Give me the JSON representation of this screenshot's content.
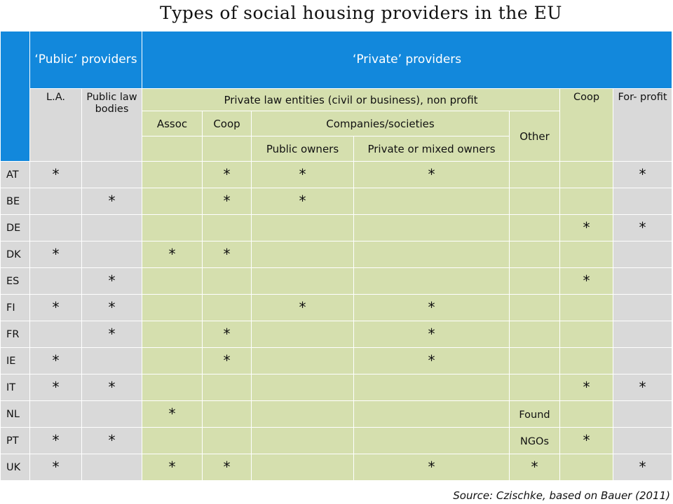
{
  "title": "Types of social housing providers in the EU",
  "source": "Source: Czischke, based on Bauer (2011)",
  "header": {
    "public_providers": "‘Public’ providers",
    "private_providers": "‘Private’ providers",
    "la": "L.A.",
    "public_law_bodies": "Public law bodies",
    "private_law_entities": "Private law entities (civil or business), non profit",
    "coop_top": "Coop",
    "for_profit": "For- profit",
    "assoc": "Assoc",
    "coop": "Coop",
    "companies_societies": "Companies/societies",
    "other": "Other",
    "public_owners": "Public owners",
    "private_mixed_owners": "Private or mixed owners"
  },
  "rows": [
    {
      "country": "AT",
      "cells": [
        "*",
        "",
        "",
        "*",
        "*",
        "*",
        "",
        "",
        "*"
      ]
    },
    {
      "country": "BE",
      "cells": [
        "",
        "*",
        "",
        "*",
        "*",
        "",
        "",
        "",
        ""
      ]
    },
    {
      "country": "DE",
      "cells": [
        "",
        "",
        "",
        "",
        "",
        "",
        "",
        "*",
        "*"
      ]
    },
    {
      "country": "DK",
      "cells": [
        "*",
        "",
        "*",
        "*",
        "",
        "",
        "",
        "",
        ""
      ]
    },
    {
      "country": "ES",
      "cells": [
        "",
        "*",
        "",
        "",
        "",
        "",
        "",
        "*",
        ""
      ]
    },
    {
      "country": "FI",
      "cells": [
        "*",
        "*",
        "",
        "",
        "*",
        "*",
        "",
        "",
        ""
      ]
    },
    {
      "country": "FR",
      "cells": [
        "",
        "*",
        "",
        "*",
        "",
        "*",
        "",
        "",
        ""
      ]
    },
    {
      "country": "IE",
      "cells": [
        "*",
        "",
        "",
        "*",
        "",
        "*",
        "",
        "",
        ""
      ]
    },
    {
      "country": "IT",
      "cells": [
        "*",
        "*",
        "",
        "",
        "",
        "",
        "",
        "*",
        "*"
      ]
    },
    {
      "country": "NL",
      "cells": [
        "",
        "",
        "*",
        "",
        "",
        "",
        "Found",
        "",
        ""
      ]
    },
    {
      "country": "PT",
      "cells": [
        "*",
        "*",
        "",
        "",
        "",
        "",
        "NGOs",
        "*",
        ""
      ]
    },
    {
      "country": "UK",
      "cells": [
        "*",
        "",
        "*",
        "*",
        "",
        "*",
        "*",
        "",
        "*"
      ]
    }
  ],
  "colors": {
    "header_blue": "#1288dc",
    "grey": "#d9d9d9",
    "green": "#d5dfae"
  }
}
